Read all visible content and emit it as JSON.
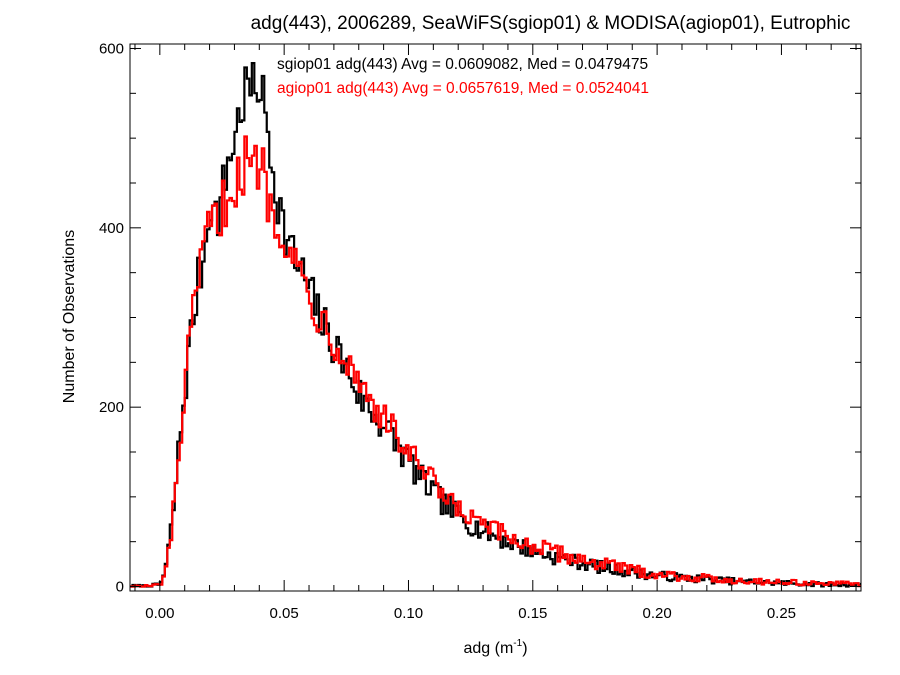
{
  "chart_data": {
    "type": "line",
    "style": "step-histogram",
    "title": "adg(443), 2006289, SeaWiFS(sgiop01) & MODISA(agiop01), Eutrophic",
    "xlabel": "adg (m",
    "xlabel_sup": "-1",
    "xlabel_close": ")",
    "ylabel": "Number of Observations",
    "xlim": [
      -0.012,
      0.282
    ],
    "ylim": [
      -5,
      605
    ],
    "xticks": [
      0.0,
      0.05,
      0.1,
      0.15,
      0.2,
      0.25
    ],
    "xtick_labels": [
      "0.00",
      "0.05",
      "0.10",
      "0.15",
      "0.20",
      "0.25"
    ],
    "yticks": [
      0,
      200,
      400,
      600
    ],
    "ytick_labels": [
      "0",
      "200",
      "400",
      "600"
    ],
    "grid": false,
    "legend_position": "top-right",
    "series": [
      {
        "name": "sgiop01 adg(443) Avg = 0.0609082, Med = 0.0479475",
        "color": "#000000",
        "bin_width": 0.001,
        "x": [
          -0.01,
          -0.005,
          0.0,
          0.002,
          0.004,
          0.006,
          0.008,
          0.01,
          0.012,
          0.014,
          0.016,
          0.018,
          0.02,
          0.022,
          0.024,
          0.026,
          0.028,
          0.03,
          0.032,
          0.034,
          0.036,
          0.038,
          0.04,
          0.042,
          0.044,
          0.046,
          0.048,
          0.05,
          0.052,
          0.054,
          0.056,
          0.058,
          0.06,
          0.065,
          0.07,
          0.075,
          0.08,
          0.085,
          0.09,
          0.095,
          0.1,
          0.105,
          0.11,
          0.115,
          0.12,
          0.125,
          0.13,
          0.14,
          0.15,
          0.16,
          0.17,
          0.18,
          0.19,
          0.2,
          0.21,
          0.22,
          0.23,
          0.24,
          0.25,
          0.26,
          0.27,
          0.28
        ],
        "y": [
          0,
          0,
          2,
          15,
          50,
          100,
          165,
          215,
          270,
          310,
          350,
          370,
          440,
          410,
          420,
          450,
          480,
          500,
          525,
          550,
          560,
          545,
          570,
          530,
          500,
          455,
          430,
          395,
          380,
          365,
          355,
          345,
          330,
          295,
          270,
          245,
          215,
          195,
          180,
          160,
          140,
          120,
          105,
          90,
          80,
          70,
          62,
          50,
          40,
          32,
          26,
          20,
          16,
          12,
          10,
          8,
          6,
          5,
          4,
          3,
          2,
          2
        ]
      },
      {
        "name": "agiop01 adg(443) Avg = 0.0657619, Med = 0.0524041",
        "color": "#ff0000",
        "bin_width": 0.001,
        "x": [
          -0.01,
          -0.005,
          0.0,
          0.002,
          0.004,
          0.006,
          0.008,
          0.01,
          0.012,
          0.014,
          0.016,
          0.018,
          0.02,
          0.022,
          0.024,
          0.026,
          0.028,
          0.03,
          0.032,
          0.034,
          0.036,
          0.038,
          0.04,
          0.042,
          0.044,
          0.046,
          0.048,
          0.05,
          0.052,
          0.054,
          0.056,
          0.058,
          0.06,
          0.065,
          0.07,
          0.075,
          0.08,
          0.085,
          0.09,
          0.095,
          0.1,
          0.105,
          0.11,
          0.115,
          0.12,
          0.125,
          0.13,
          0.14,
          0.15,
          0.16,
          0.17,
          0.18,
          0.19,
          0.2,
          0.21,
          0.22,
          0.23,
          0.24,
          0.25,
          0.26,
          0.27,
          0.28
        ],
        "y": [
          0,
          0,
          2,
          12,
          45,
          95,
          160,
          215,
          270,
          310,
          345,
          375,
          410,
          400,
          410,
          430,
          440,
          455,
          450,
          470,
          475,
          460,
          480,
          460,
          430,
          420,
          410,
          395,
          380,
          365,
          350,
          340,
          325,
          300,
          280,
          255,
          230,
          210,
          185,
          170,
          150,
          130,
          115,
          95,
          85,
          75,
          68,
          55,
          45,
          37,
          30,
          24,
          18,
          14,
          11,
          9,
          7,
          6,
          5,
          4,
          3,
          3
        ]
      }
    ]
  }
}
